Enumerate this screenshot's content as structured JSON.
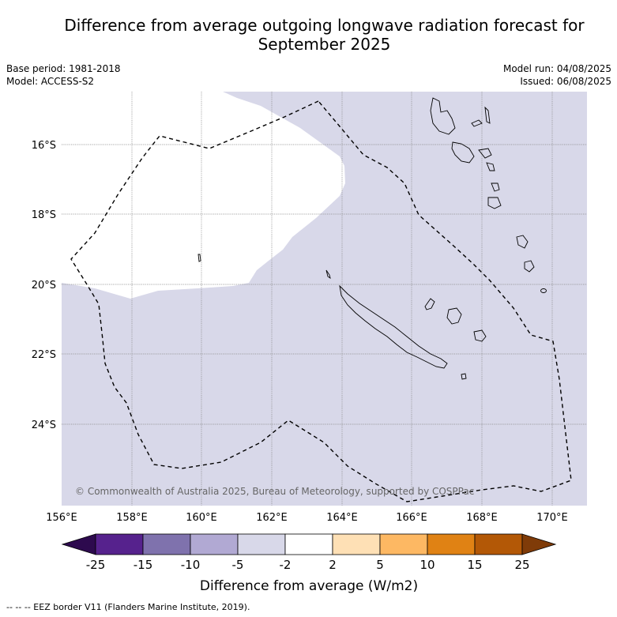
{
  "title_line1": "Difference from average outgoing longwave radiation forecast for",
  "title_line2": "September 2025",
  "base_period": "Base period: 1981-2018",
  "model": "Model: ACCESS-S2",
  "model_run": "Model run: 04/08/2025",
  "issued": "Issued: 06/08/2025",
  "copyright": "© Commonwealth of Australia 2025, Bureau of Meteorology, supported by COSPPac",
  "lon_labels": [
    "156°E",
    "158°E",
    "160°E",
    "162°E",
    "164°E",
    "166°E",
    "168°E",
    "170°E"
  ],
  "lat_labels": [
    "16°S",
    "18°S",
    "20°S",
    "22°S",
    "24°S"
  ],
  "colorbar": {
    "ticks": [
      "-25",
      "-15",
      "-10",
      "-5",
      "-2",
      "2",
      "5",
      "10",
      "15",
      "25"
    ],
    "colors": [
      "#2d0a4e",
      "#56228d",
      "#7f72ad",
      "#b1a9d3",
      "#d8d8e9",
      "#ffffff",
      "#fee0b5",
      "#fdb863",
      "#e08214",
      "#b35806",
      "#7f3b08"
    ],
    "label": "Difference from average (W/m2)"
  },
  "legend_eez": "--  --  -- EEZ border V11 (Flanders Marine Institute, 2019).",
  "fill_color": "#d8d8e9"
}
